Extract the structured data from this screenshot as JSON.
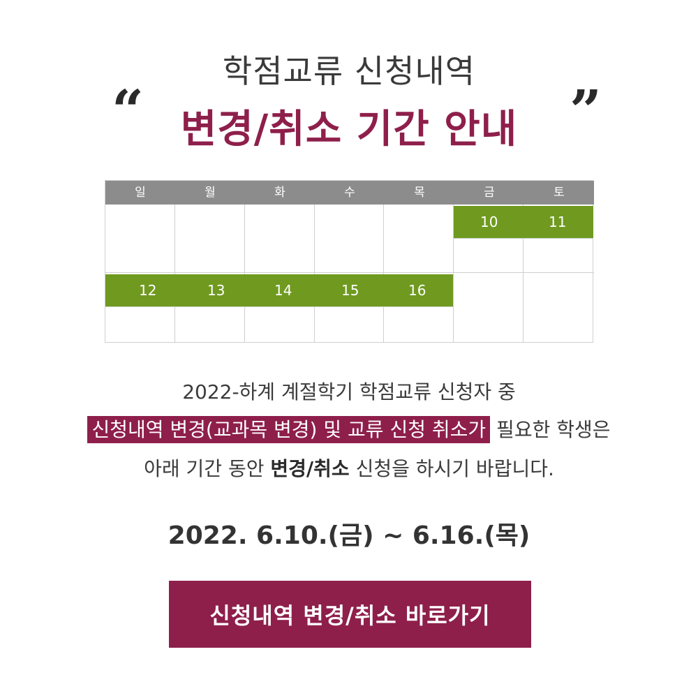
{
  "header": {
    "title_line1": "학점교류 신청내역",
    "title_line2": "변경/취소 기간 안내",
    "quote_open": "“",
    "quote_close": "”"
  },
  "calendar": {
    "weekdays": [
      "일",
      "월",
      "화",
      "수",
      "목",
      "금",
      "토"
    ],
    "week1_days": [
      "10",
      "11"
    ],
    "week2_days": [
      "12",
      "13",
      "14",
      "15",
      "16"
    ],
    "highlight_color": "#6f9a1f",
    "header_color": "#8c8c8c"
  },
  "notice": {
    "line1": "2022-하계 계절학기 학점교류 신청자 중",
    "line2_highlight": "신청내역 변경(교과목 변경) 및 교류 신청 취소가",
    "line2_rest": " 필요한 학생은",
    "line3_pre": "아래 기간 동안 ",
    "line3_bold": "변경/취소",
    "line3_post": " 신청을 하시기 바랍니다."
  },
  "period": {
    "text": "2022. 6.10.(금) ~ 6.16.(목)"
  },
  "button": {
    "label": "신청내역 변경/취소 바로가기"
  },
  "colors": {
    "accent": "#8e1f4b",
    "green": "#6f9a1f"
  }
}
